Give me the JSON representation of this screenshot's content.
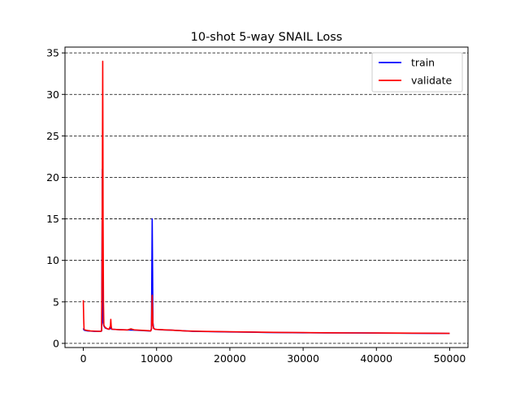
{
  "chart_data": {
    "type": "line",
    "title": "10-shot 5-way SNAIL Loss",
    "xlabel": "",
    "ylabel": "",
    "xlim": [
      -2500,
      52500
    ],
    "ylim": [
      -0.5,
      35.7
    ],
    "xticks": [
      0,
      10000,
      20000,
      30000,
      40000,
      50000
    ],
    "xtick_labels": [
      "0",
      "10000",
      "20000",
      "30000",
      "40000",
      "50000"
    ],
    "yticks": [
      0,
      5,
      10,
      15,
      20,
      25,
      30,
      35
    ],
    "ytick_labels": [
      "0",
      "5",
      "10",
      "15",
      "20",
      "25",
      "30",
      "35"
    ],
    "grid": {
      "axis": "y",
      "style": "dashed",
      "color": "#000000"
    },
    "legend": {
      "position": "top-right"
    },
    "series": [
      {
        "name": "train",
        "color": "#0000ff",
        "x": [
          0,
          100,
          300,
          600,
          1000,
          1500,
          2000,
          2400,
          2500,
          2550,
          2600,
          2650,
          2700,
          2800,
          3000,
          3300,
          3500,
          3700,
          3750,
          3800,
          3850,
          4000,
          5000,
          6000,
          7000,
          8000,
          9000,
          9200,
          9300,
          9350,
          9400,
          9450,
          9500,
          9600,
          9800,
          10000,
          11000,
          12000,
          13000,
          14000,
          15000,
          17000,
          20000,
          23000,
          25000,
          27000,
          30000,
          33000,
          35000,
          38000,
          40000,
          43000,
          45000,
          48000,
          50000
        ],
        "y": [
          1.8,
          1.6,
          1.55,
          1.5,
          1.48,
          1.45,
          1.45,
          1.45,
          1.5,
          10.0,
          21.0,
          8.0,
          2.5,
          2.1,
          1.85,
          1.75,
          1.7,
          1.8,
          2.2,
          1.9,
          1.7,
          1.7,
          1.65,
          1.62,
          1.6,
          1.55,
          1.5,
          1.5,
          1.8,
          8.0,
          15.0,
          9.0,
          2.5,
          1.8,
          1.7,
          1.68,
          1.62,
          1.6,
          1.55,
          1.5,
          1.45,
          1.42,
          1.38,
          1.35,
          1.32,
          1.3,
          1.28,
          1.27,
          1.26,
          1.25,
          1.24,
          1.23,
          1.22,
          1.21,
          1.2
        ]
      },
      {
        "name": "validate",
        "color": "#ff0000",
        "x": [
          0,
          50,
          100,
          300,
          600,
          1000,
          1500,
          2000,
          2400,
          2500,
          2550,
          2600,
          2650,
          2700,
          2750,
          2800,
          3000,
          3300,
          3500,
          3700,
          3750,
          3800,
          3850,
          4000,
          5000,
          6000,
          6500,
          7000,
          8000,
          9000,
          9200,
          9300,
          9350,
          9400,
          9450,
          9500,
          9600,
          9800,
          10000,
          11000,
          12000,
          13000,
          14000,
          15000,
          17000,
          20000,
          23000,
          25000,
          27000,
          30000,
          33000,
          35000,
          38000,
          40000,
          43000,
          45000,
          48000,
          50000
        ],
        "y": [
          5.2,
          3.0,
          1.7,
          1.6,
          1.55,
          1.5,
          1.48,
          1.45,
          1.45,
          1.55,
          8.0,
          20.0,
          34.0,
          15.0,
          5.0,
          2.2,
          1.9,
          1.75,
          1.7,
          2.1,
          2.9,
          2.2,
          1.75,
          1.7,
          1.65,
          1.62,
          1.75,
          1.62,
          1.57,
          1.52,
          1.5,
          1.7,
          4.0,
          5.8,
          4.0,
          2.2,
          1.8,
          1.7,
          1.68,
          1.63,
          1.6,
          1.55,
          1.5,
          1.47,
          1.44,
          1.4,
          1.37,
          1.34,
          1.32,
          1.3,
          1.28,
          1.27,
          1.26,
          1.25,
          1.24,
          1.23,
          1.22,
          1.21
        ]
      }
    ]
  }
}
